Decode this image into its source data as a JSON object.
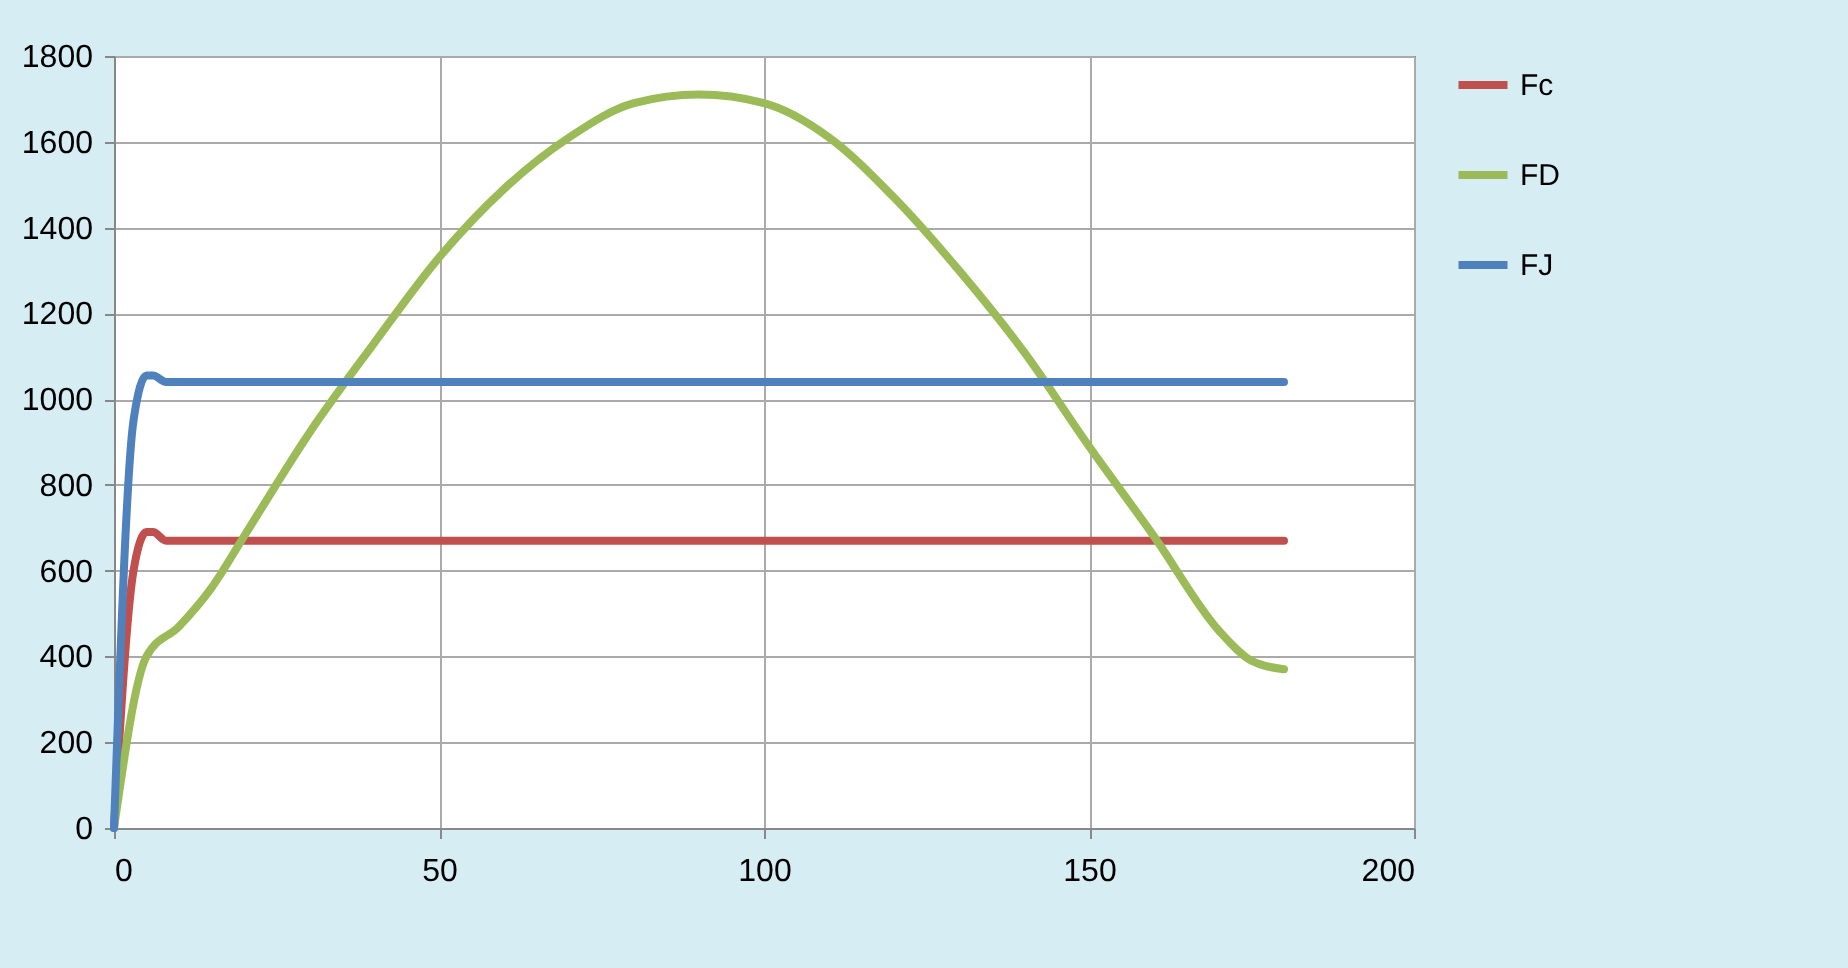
{
  "chart_data": {
    "type": "line",
    "xlim": [
      0,
      200
    ],
    "xticks": [
      0,
      50,
      100,
      150,
      200
    ],
    "ylim": [
      0,
      1800
    ],
    "yticks": [
      0,
      200,
      400,
      600,
      800,
      1000,
      1200,
      1400,
      1600,
      1800
    ],
    "grid": true,
    "legend": "right",
    "marker": "none",
    "line_style": "solid",
    "series": [
      {
        "name": "Fc",
        "color": "#c0504d",
        "x": [
          0,
          3,
          5,
          6,
          8,
          10,
          180
        ],
        "values": [
          0,
          600,
          690,
          690,
          670,
          670,
          670
        ]
      },
      {
        "name": "FD",
        "color": "#9bbb59",
        "x": [
          0,
          5,
          10,
          15,
          20,
          30,
          40,
          50,
          60,
          70,
          80,
          90,
          100,
          110,
          120,
          130,
          140,
          150,
          160,
          170,
          175,
          180
        ],
        "values": [
          0,
          400,
          470,
          560,
          680,
          920,
          1130,
          1330,
          1490,
          1610,
          1690,
          1710,
          1690,
          1610,
          1470,
          1300,
          1110,
          890,
          680,
          460,
          390,
          370
        ]
      },
      {
        "name": "FJ",
        "color": "#4f81bd",
        "x": [
          0,
          3,
          5,
          6,
          8,
          10,
          180
        ],
        "values": [
          0,
          950,
          1055,
          1055,
          1040,
          1040,
          1040
        ]
      }
    ]
  }
}
